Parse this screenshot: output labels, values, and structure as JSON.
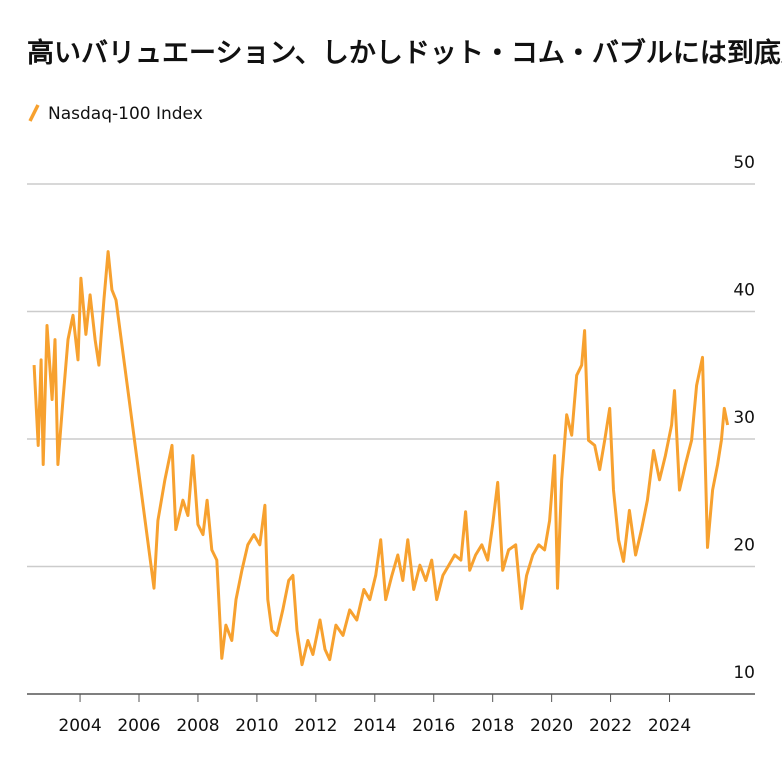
{
  "chart_data": {
    "type": "line",
    "title": "高いバリュエーション、しかしドット・コム・バブルには到底及ばず",
    "xlim": [
      2002.2,
      2026.9
    ],
    "ylim": [
      10,
      50
    ],
    "xticks": [
      2004,
      2006,
      2008,
      2010,
      2012,
      2014,
      2016,
      2018,
      2020,
      2022,
      2024
    ],
    "yticks": [
      10,
      20,
      30,
      40,
      50
    ],
    "grid": true,
    "x": [
      2002.44,
      2002.58,
      2002.68,
      2002.75,
      2002.88,
      2003.05,
      2003.15,
      2003.25,
      2003.42,
      2003.59,
      2003.76,
      2003.93,
      2004.03,
      2004.2,
      2004.34,
      2004.51,
      2004.64,
      2004.81,
      2004.95,
      2005.08,
      2005.22,
      2006.51,
      2006.64,
      2006.88,
      2007.12,
      2007.25,
      2007.49,
      2007.66,
      2007.83,
      2008.0,
      2008.17,
      2008.31,
      2008.47,
      2008.64,
      2008.81,
      2008.95,
      2009.15,
      2009.29,
      2009.49,
      2009.69,
      2009.9,
      2010.1,
      2010.27,
      2010.37,
      2010.51,
      2010.68,
      2010.88,
      2011.08,
      2011.22,
      2011.36,
      2011.53,
      2011.73,
      2011.9,
      2012.14,
      2012.31,
      2012.47,
      2012.68,
      2012.92,
      2013.15,
      2013.39,
      2013.63,
      2013.83,
      2014.03,
      2014.2,
      2014.37,
      2014.58,
      2014.78,
      2014.95,
      2015.12,
      2015.32,
      2015.53,
      2015.73,
      2015.93,
      2016.1,
      2016.31,
      2016.51,
      2016.71,
      2016.92,
      2017.08,
      2017.22,
      2017.42,
      2017.63,
      2017.83,
      2018.0,
      2018.17,
      2018.34,
      2018.54,
      2018.78,
      2018.98,
      2019.15,
      2019.36,
      2019.56,
      2019.76,
      2019.93,
      2020.1,
      2020.2,
      2020.34,
      2020.51,
      2020.68,
      2020.85,
      2021.02,
      2021.12,
      2021.25,
      2021.46,
      2021.63,
      2021.8,
      2021.97,
      2022.1,
      2022.27,
      2022.44,
      2022.64,
      2022.85,
      2023.05,
      2023.25,
      2023.46,
      2023.66,
      2023.86,
      2024.07,
      2024.17,
      2024.34,
      2024.54,
      2024.75,
      2024.92,
      2025.12,
      2025.29,
      2025.46,
      2025.63,
      2025.76,
      2025.86,
      2025.97
    ],
    "series": [
      {
        "name": "Nasdaq-100 Index",
        "color": "#f7a12f",
        "values": [
          35.8,
          29.5,
          36.2,
          28.0,
          38.9,
          33.1,
          37.8,
          28.0,
          33.1,
          37.8,
          39.7,
          36.2,
          42.6,
          38.2,
          41.3,
          37.8,
          35.8,
          40.9,
          44.7,
          41.7,
          40.9,
          18.3,
          23.6,
          26.8,
          29.5,
          22.9,
          25.2,
          24.0,
          28.7,
          23.3,
          22.5,
          25.2,
          21.3,
          20.5,
          12.8,
          15.4,
          14.2,
          17.4,
          19.7,
          21.7,
          22.5,
          21.7,
          24.8,
          17.4,
          15.0,
          14.6,
          16.6,
          18.9,
          19.3,
          15.0,
          12.3,
          14.2,
          13.1,
          15.8,
          13.5,
          12.7,
          15.4,
          14.6,
          16.6,
          15.8,
          18.2,
          17.4,
          19.3,
          22.1,
          17.4,
          19.3,
          20.9,
          18.9,
          22.1,
          18.2,
          20.1,
          18.9,
          20.5,
          17.4,
          19.3,
          20.1,
          20.9,
          20.5,
          24.3,
          19.7,
          20.9,
          21.7,
          20.5,
          23.3,
          26.6,
          19.7,
          21.3,
          21.7,
          16.7,
          19.3,
          20.9,
          21.7,
          21.3,
          23.6,
          28.7,
          18.3,
          26.8,
          31.9,
          30.3,
          35.0,
          35.8,
          38.5,
          29.9,
          29.5,
          27.6,
          29.9,
          32.4,
          26.0,
          22.1,
          20.4,
          24.4,
          20.9,
          22.9,
          25.2,
          29.1,
          26.8,
          28.7,
          31.1,
          33.8,
          26.0,
          28.0,
          29.9,
          34.2,
          36.4,
          21.5,
          26.0,
          28.0,
          29.9,
          32.4,
          31.1
        ]
      }
    ]
  }
}
